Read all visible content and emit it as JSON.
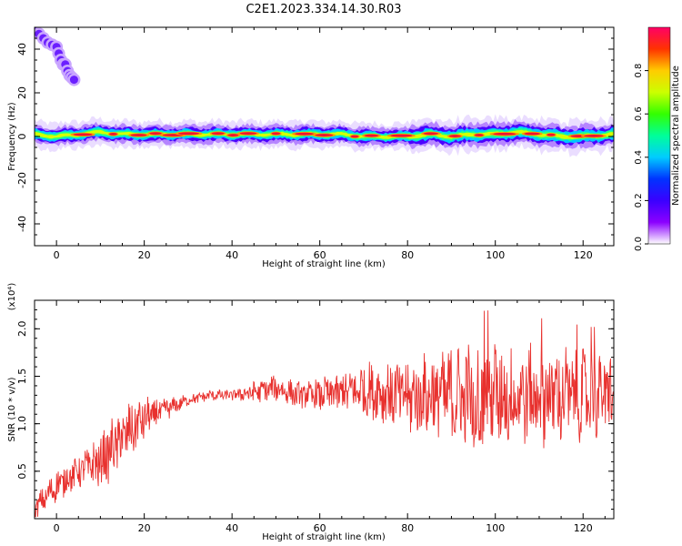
{
  "figure": {
    "title": "C2E1.2023.334.14.30.R03"
  },
  "colors": {
    "snr_line": "#e8312e",
    "axes": "#000000"
  },
  "colormap_stops": [
    "#ffffff",
    "#8b00ff",
    "#3a00ff",
    "#0033ff",
    "#00ccff",
    "#00ff99",
    "#33ff00",
    "#ccff00",
    "#ffcc00",
    "#ff3300",
    "#ff0066"
  ],
  "chart_data": [
    {
      "type": "heatmap",
      "name": "spectrogram",
      "xlabel": "Height of straight line (km)",
      "ylabel": "Frequency (Hz)",
      "xlim": [
        -5,
        127
      ],
      "ylim": [
        -50,
        50
      ],
      "xticks": [
        0,
        20,
        40,
        60,
        80,
        100,
        120
      ],
      "yticks": [
        -40,
        -20,
        0,
        20,
        40
      ],
      "colorbar": {
        "label": "Normalized spectral amplitude",
        "range": [
          0,
          1
        ],
        "ticks": [
          "0.0",
          "0.2",
          "0.4",
          "0.6",
          "0.8"
        ]
      },
      "ridge": {
        "x": [
          -5,
          0,
          5,
          10,
          15,
          20,
          25,
          30,
          35,
          40,
          45,
          50,
          55,
          60,
          65,
          70,
          75,
          80,
          85,
          90,
          95,
          100,
          105,
          110,
          115,
          120,
          127
        ],
        "freq": [
          1,
          0,
          1,
          2,
          1,
          1,
          1,
          1,
          1,
          1,
          1,
          1,
          1,
          1,
          1,
          0,
          0,
          0,
          1,
          0,
          1,
          1,
          2,
          1,
          0,
          0,
          1
        ]
      },
      "artifact": {
        "x": [
          -5,
          -4,
          -3,
          -2,
          -1,
          0,
          0.5,
          1,
          1.5,
          2,
          2.5,
          3,
          3.5,
          4
        ],
        "freq": [
          48,
          47,
          45,
          43,
          42,
          41,
          38,
          35,
          33,
          33,
          30,
          28,
          27,
          26
        ]
      }
    },
    {
      "type": "line",
      "name": "snr",
      "xlabel": "Height of straight line (km)",
      "ylabel": "SNR (10 * v/v)",
      "y_multiplier": "(x10⁴)",
      "xlim": [
        -5,
        127
      ],
      "ylim": [
        0,
        2.3
      ],
      "xticks": [
        0,
        20,
        40,
        60,
        80,
        100,
        120
      ],
      "yticks": [
        0.5,
        1.0,
        1.5,
        2.0
      ],
      "envelope": {
        "x": [
          -5,
          0,
          5,
          10,
          15,
          20,
          25,
          30,
          35,
          40,
          45,
          50,
          55,
          60,
          65,
          70,
          75,
          80,
          85,
          90,
          95,
          100,
          105,
          110,
          115,
          120,
          127
        ],
        "mean": [
          0.1,
          0.35,
          0.5,
          0.6,
          0.85,
          1.05,
          1.15,
          1.25,
          1.3,
          1.3,
          1.33,
          1.38,
          1.3,
          1.3,
          1.33,
          1.36,
          1.33,
          1.28,
          1.3,
          1.3,
          1.28,
          1.3,
          1.3,
          1.3,
          1.3,
          1.3,
          1.3
        ],
        "spread": [
          0.1,
          0.15,
          0.15,
          0.25,
          0.3,
          0.2,
          0.1,
          0.05,
          0.05,
          0.05,
          0.1,
          0.12,
          0.12,
          0.15,
          0.2,
          0.25,
          0.3,
          0.35,
          0.4,
          0.45,
          0.5,
          0.5,
          0.45,
          0.45,
          0.45,
          0.4,
          0.4
        ]
      }
    }
  ]
}
